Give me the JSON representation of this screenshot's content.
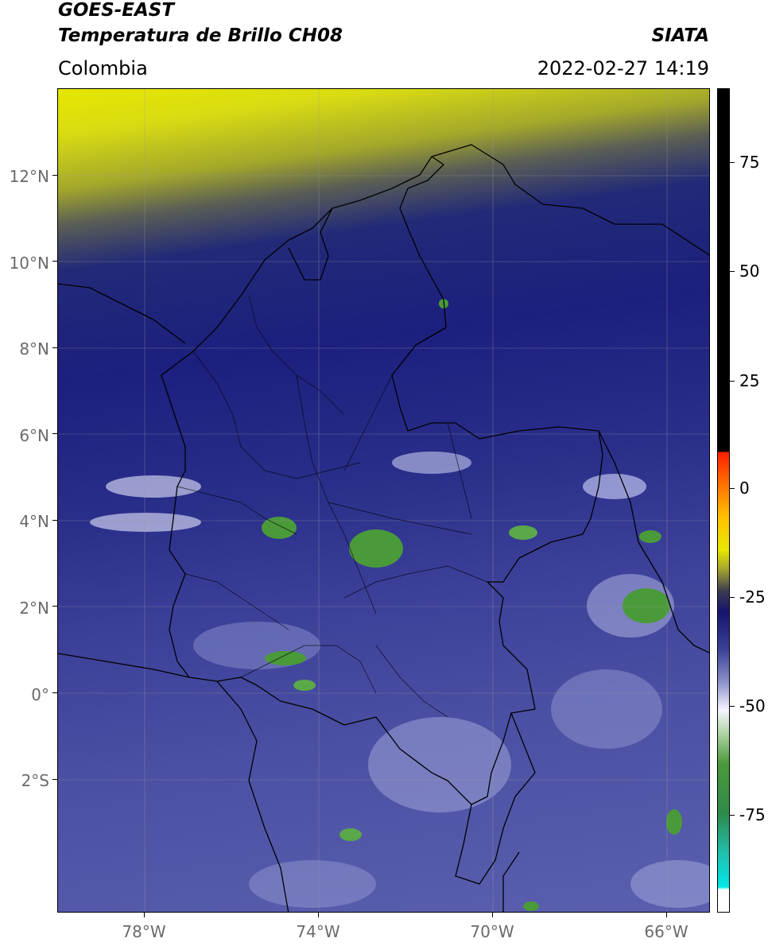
{
  "header": {
    "satellite": "GOES-EAST",
    "product": "Temperatura de Brillo CH08",
    "region": "Colombia",
    "source": "SIATA",
    "datetime": "2022-02-27 14:19"
  },
  "axes": {
    "lat_ticks": [
      "12°N",
      "10°N",
      "8°N",
      "6°N",
      "4°N",
      "2°N",
      "0°",
      "2°S"
    ],
    "lat_values": [
      12,
      10,
      8,
      6,
      4,
      2,
      0,
      -2
    ],
    "lon_ticks": [
      "78°W",
      "74°W",
      "70°W",
      "66°W"
    ],
    "lon_values": [
      -78,
      -74,
      -70,
      -66
    ],
    "lon_range": [
      -80,
      -65
    ],
    "lat_range": [
      -5.1,
      14
    ]
  },
  "colorbar": {
    "labels": [
      "75",
      "50",
      "25",
      "0",
      "-25",
      "-50",
      "-75"
    ],
    "values": [
      75,
      50,
      25,
      0,
      -25,
      -50,
      -75
    ],
    "range": [
      -95,
      90
    ]
  },
  "colors": {
    "warm_black": "#000000",
    "yellow": "#e6e600",
    "dark_blue": "#1c1f7e",
    "mid_blue": "#4a4fa3",
    "white": "#ffffff",
    "green": "#4a9a3a",
    "cyan": "#00e8e8"
  }
}
